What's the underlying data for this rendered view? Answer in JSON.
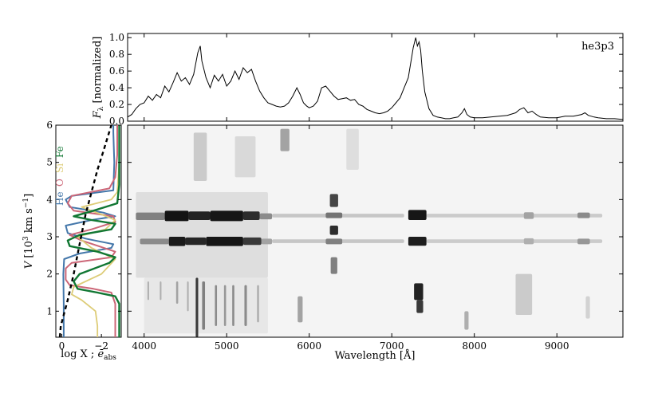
{
  "chart_data": [
    {
      "id": "top",
      "type": "line",
      "legend_text": "he3p3",
      "ylabel": "F_λ [normalized]",
      "ylabel_main": "F",
      "ylabel_sub": "λ",
      "ylabel_rest": " [normalized]",
      "xlim": [
        3800,
        9800
      ],
      "ylim": [
        0,
        1.05
      ],
      "yticks": [
        0.0,
        0.2,
        0.4,
        0.6,
        0.8,
        1.0
      ],
      "ytick_labels": [
        "0.0",
        "0.2",
        "0.4",
        "0.6",
        "0.8",
        "1.0"
      ],
      "x": [
        3800,
        3850,
        3900,
        3950,
        4000,
        4050,
        4100,
        4150,
        4200,
        4250,
        4300,
        4350,
        4400,
        4450,
        4500,
        4550,
        4600,
        4650,
        4680,
        4700,
        4750,
        4800,
        4850,
        4900,
        4950,
        5000,
        5050,
        5100,
        5150,
        5200,
        5250,
        5300,
        5350,
        5400,
        5450,
        5500,
        5550,
        5600,
        5650,
        5700,
        5750,
        5800,
        5850,
        5890,
        5930,
        5970,
        6000,
        6050,
        6100,
        6150,
        6200,
        6250,
        6300,
        6350,
        6400,
        6450,
        6500,
        6550,
        6600,
        6650,
        6700,
        6750,
        6800,
        6850,
        6900,
        6950,
        7000,
        7050,
        7100,
        7150,
        7200,
        7230,
        7260,
        7290,
        7310,
        7330,
        7350,
        7370,
        7400,
        7450,
        7500,
        7550,
        7600,
        7650,
        7700,
        7750,
        7800,
        7850,
        7880,
        7910,
        7950,
        8000,
        8100,
        8200,
        8300,
        8400,
        8500,
        8550,
        8600,
        8650,
        8700,
        8750,
        8800,
        8900,
        9000,
        9100,
        9200,
        9300,
        9340,
        9380,
        9450,
        9500,
        9600,
        9700,
        9800
      ],
      "y": [
        0.05,
        0.08,
        0.15,
        0.2,
        0.22,
        0.3,
        0.25,
        0.32,
        0.28,
        0.42,
        0.35,
        0.46,
        0.58,
        0.48,
        0.52,
        0.44,
        0.56,
        0.82,
        0.9,
        0.72,
        0.52,
        0.4,
        0.55,
        0.48,
        0.56,
        0.42,
        0.48,
        0.6,
        0.5,
        0.64,
        0.58,
        0.62,
        0.48,
        0.36,
        0.28,
        0.22,
        0.2,
        0.18,
        0.17,
        0.18,
        0.22,
        0.3,
        0.4,
        0.32,
        0.22,
        0.18,
        0.16,
        0.18,
        0.24,
        0.4,
        0.42,
        0.36,
        0.3,
        0.26,
        0.27,
        0.28,
        0.25,
        0.26,
        0.2,
        0.18,
        0.14,
        0.12,
        0.1,
        0.09,
        0.1,
        0.12,
        0.16,
        0.22,
        0.28,
        0.4,
        0.52,
        0.7,
        0.88,
        1.0,
        0.9,
        0.95,
        0.85,
        0.6,
        0.35,
        0.15,
        0.07,
        0.05,
        0.04,
        0.03,
        0.03,
        0.04,
        0.05,
        0.1,
        0.15,
        0.08,
        0.05,
        0.04,
        0.04,
        0.05,
        0.06,
        0.07,
        0.1,
        0.14,
        0.16,
        0.1,
        0.12,
        0.08,
        0.05,
        0.04,
        0.04,
        0.06,
        0.06,
        0.08,
        0.1,
        0.07,
        0.05,
        0.04,
        0.03,
        0.03,
        0.02
      ]
    },
    {
      "id": "left",
      "type": "line",
      "xlabel": "log X ; ē_abs",
      "xlabel_main": "log X ; ",
      "xlabel_e": "ē",
      "xlabel_sub": "abs",
      "ylabel": "V [10³ km s⁻¹]",
      "ylabel_parts": [
        "V",
        " [10",
        "3",
        " km s",
        "−1",
        "]"
      ],
      "xlim": [
        0.3,
        -3.0
      ],
      "ylim": [
        0.3,
        6.0
      ],
      "xticks": [
        0,
        -2
      ],
      "xtick_labels": [
        "0",
        "−2"
      ],
      "yticks": [
        1,
        2,
        3,
        4,
        5,
        6
      ],
      "ytick_labels": [
        "1",
        "2",
        "3",
        "4",
        "5",
        "6"
      ],
      "species_labels": [
        "He",
        "O",
        "Si",
        "Fe"
      ],
      "series": [
        {
          "name": "He",
          "color": "#4477aa",
          "x": [
            -0.1,
            -0.1,
            -0.08,
            -0.12,
            -0.9,
            -2.5,
            -2.6,
            -1.2,
            -0.3,
            -0.2,
            -1.5,
            -2.7,
            -2.1,
            -0.4,
            -0.2,
            -0.5,
            -2.6,
            -2.65,
            -2.6,
            -2.6
          ],
          "y": [
            0.3,
            1.2,
            2.0,
            2.4,
            2.55,
            2.7,
            2.8,
            2.95,
            3.1,
            3.3,
            3.45,
            3.55,
            3.65,
            3.8,
            4.0,
            4.1,
            4.25,
            5.0,
            5.8,
            6.0
          ]
        },
        {
          "name": "O",
          "color": "#cc6677",
          "x": [
            -2.7,
            -2.7,
            -2.5,
            -1.6,
            -0.4,
            -0.2,
            -0.2,
            -0.5,
            -2.5,
            -2.7,
            -1.0,
            -0.4,
            -1.5,
            -2.7,
            -2.6,
            -0.6,
            -0.3,
            -0.5,
            -2.4,
            -2.7,
            -2.8,
            -2.8
          ],
          "y": [
            0.3,
            1.2,
            1.5,
            1.6,
            1.7,
            1.85,
            2.15,
            2.3,
            2.45,
            2.6,
            2.9,
            3.05,
            3.2,
            3.4,
            3.55,
            3.7,
            3.9,
            4.1,
            4.3,
            4.6,
            5.2,
            6.0
          ]
        },
        {
          "name": "Si",
          "color": "#ddcc77",
          "x": [
            -1.8,
            -1.8,
            -1.7,
            -1.0,
            -0.5,
            -0.6,
            -2.0,
            -2.7,
            -1.5,
            -0.8,
            -2.2,
            -2.7,
            -2.0,
            -1.0,
            -2.5,
            -2.8,
            -2.9,
            -2.9
          ],
          "y": [
            0.3,
            0.6,
            1.0,
            1.3,
            1.45,
            1.65,
            2.0,
            2.4,
            2.7,
            3.0,
            3.2,
            3.45,
            3.6,
            3.8,
            4.0,
            4.2,
            5.0,
            6.0
          ],
          "width": 1.8
        },
        {
          "name": "Fe",
          "color": "#117733",
          "x": [
            -2.9,
            -2.9,
            -2.7,
            -1.8,
            -0.8,
            -0.6,
            -0.9,
            -2.4,
            -2.7,
            -1.8,
            -0.4,
            -0.3,
            -0.9,
            -2.5,
            -2.7,
            -1.5,
            -0.6,
            -1.6,
            -2.8,
            -2.9,
            -2.9
          ],
          "y": [
            0.3,
            1.2,
            1.4,
            1.5,
            1.6,
            1.8,
            2.0,
            2.3,
            2.45,
            2.6,
            2.75,
            2.9,
            3.05,
            3.2,
            3.35,
            3.45,
            3.55,
            3.7,
            3.9,
            4.4,
            6.0
          ],
          "width": 2.4
        },
        {
          "name": "ē_abs",
          "color": "#000000",
          "dashed": true,
          "x": [
            0.1,
            0.05,
            -0.1,
            -0.3,
            -0.6,
            -0.9,
            -1.2,
            -1.5,
            -1.8,
            -2.1,
            -2.3,
            -2.5
          ],
          "y": [
            0.3,
            0.6,
            0.9,
            1.3,
            2.0,
            2.8,
            3.6,
            4.2,
            4.8,
            5.3,
            5.65,
            6.0
          ]
        }
      ]
    },
    {
      "id": "main",
      "type": "heatmap",
      "xlabel": "Wavelength [Å]",
      "xlim": [
        3800,
        9800
      ],
      "ylim": [
        0.3,
        6.0
      ],
      "xticks": [
        4000,
        5000,
        6000,
        7000,
        8000,
        9000
      ],
      "xtick_labels": [
        "4000",
        "5000",
        "6000",
        "7000",
        "8000",
        "9000"
      ],
      "features": [
        {
          "x0": 4250,
          "x1": 4540,
          "y0": 3.42,
          "y1": 3.7,
          "i": 0.96
        },
        {
          "x0": 4540,
          "x1": 4800,
          "y0": 3.45,
          "y1": 3.68,
          "i": 0.9
        },
        {
          "x0": 4800,
          "x1": 5200,
          "y0": 3.42,
          "y1": 3.7,
          "i": 0.95
        },
        {
          "x0": 5200,
          "x1": 5400,
          "y0": 3.45,
          "y1": 3.68,
          "i": 0.85
        },
        {
          "x0": 3900,
          "x1": 4250,
          "y0": 3.45,
          "y1": 3.65,
          "i": 0.5
        },
        {
          "x0": 5400,
          "x1": 5550,
          "y0": 3.47,
          "y1": 3.63,
          "i": 0.45
        },
        {
          "x0": 4300,
          "x1": 4500,
          "y0": 2.75,
          "y1": 3.0,
          "i": 0.93
        },
        {
          "x0": 4500,
          "x1": 4750,
          "y0": 2.78,
          "y1": 2.98,
          "i": 0.88
        },
        {
          "x0": 4750,
          "x1": 5200,
          "y0": 2.75,
          "y1": 3.0,
          "i": 0.95
        },
        {
          "x0": 5200,
          "x1": 5420,
          "y0": 2.78,
          "y1": 2.98,
          "i": 0.8
        },
        {
          "x0": 3950,
          "x1": 4300,
          "y0": 2.8,
          "y1": 2.95,
          "i": 0.45
        },
        {
          "x0": 5420,
          "x1": 5550,
          "y0": 2.8,
          "y1": 2.95,
          "i": 0.35
        },
        {
          "x0": 7200,
          "x1": 7420,
          "y0": 3.45,
          "y1": 3.72,
          "i": 0.95
        },
        {
          "x0": 7200,
          "x1": 7420,
          "y0": 2.76,
          "y1": 3.0,
          "i": 0.92
        },
        {
          "x0": 7270,
          "x1": 7380,
          "y0": 1.3,
          "y1": 1.75,
          "i": 0.9
        },
        {
          "x0": 7300,
          "x1": 7380,
          "y0": 0.95,
          "y1": 1.3,
          "i": 0.8
        },
        {
          "x0": 6250,
          "x1": 6350,
          "y0": 3.8,
          "y1": 4.15,
          "i": 0.75
        },
        {
          "x0": 6250,
          "x1": 6350,
          "y0": 3.05,
          "y1": 3.3,
          "i": 0.85
        },
        {
          "x0": 6260,
          "x1": 6340,
          "y0": 2.0,
          "y1": 2.45,
          "i": 0.5
        },
        {
          "x0": 6200,
          "x1": 6400,
          "y0": 3.5,
          "y1": 3.65,
          "i": 0.55
        },
        {
          "x0": 6200,
          "x1": 6400,
          "y0": 2.8,
          "y1": 2.95,
          "i": 0.5
        },
        {
          "x0": 5550,
          "x1": 7150,
          "y0": 3.52,
          "y1": 3.62,
          "i": 0.2
        },
        {
          "x0": 7420,
          "x1": 9550,
          "y0": 3.52,
          "y1": 3.62,
          "i": 0.18
        },
        {
          "x0": 5550,
          "x1": 7150,
          "y0": 2.83,
          "y1": 2.93,
          "i": 0.2
        },
        {
          "x0": 7420,
          "x1": 9550,
          "y0": 2.83,
          "y1": 2.93,
          "i": 0.18
        },
        {
          "x0": 9250,
          "x1": 9400,
          "y0": 3.5,
          "y1": 3.65,
          "i": 0.45
        },
        {
          "x0": 9250,
          "x1": 9400,
          "y0": 2.8,
          "y1": 2.95,
          "i": 0.4
        },
        {
          "x0": 8600,
          "x1": 8720,
          "y0": 3.48,
          "y1": 3.66,
          "i": 0.35
        },
        {
          "x0": 8600,
          "x1": 8720,
          "y0": 2.8,
          "y1": 2.96,
          "i": 0.3
        },
        {
          "x0": 7880,
          "x1": 7930,
          "y0": 0.5,
          "y1": 1.0,
          "i": 0.3
        },
        {
          "x0": 5860,
          "x1": 5920,
          "y0": 0.7,
          "y1": 1.4,
          "i": 0.35
        },
        {
          "x0": 5650,
          "x1": 5760,
          "y0": 5.3,
          "y1": 5.9,
          "i": 0.35
        },
        {
          "x0": 4600,
          "x1": 4760,
          "y0": 4.5,
          "y1": 5.8,
          "i": 0.18
        },
        {
          "x0": 5100,
          "x1": 5350,
          "y0": 4.6,
          "y1": 5.7,
          "i": 0.12
        },
        {
          "x0": 6450,
          "x1": 6600,
          "y0": 4.8,
          "y1": 5.9,
          "i": 0.1
        },
        {
          "x0": 8500,
          "x1": 8700,
          "y0": 0.9,
          "y1": 2.0,
          "i": 0.18
        },
        {
          "x0": 9350,
          "x1": 9400,
          "y0": 0.8,
          "y1": 1.4,
          "i": 0.15
        },
        {
          "x0": 3900,
          "x1": 5500,
          "y0": 1.9,
          "y1": 4.2,
          "i": 0.1
        },
        {
          "x0": 4000,
          "x1": 5500,
          "y0": 0.4,
          "y1": 1.9,
          "i": 0.06
        }
      ],
      "streaks": [
        {
          "x": 4640,
          "y0": 0.3,
          "y1": 1.9,
          "i": 0.8,
          "w": 30
        },
        {
          "x": 4720,
          "y0": 0.5,
          "y1": 1.8,
          "i": 0.5,
          "w": 35
        },
        {
          "x": 4870,
          "y0": 0.6,
          "y1": 1.7,
          "i": 0.45,
          "w": 25
        },
        {
          "x": 4980,
          "y0": 0.6,
          "y1": 1.7,
          "i": 0.4,
          "w": 25
        },
        {
          "x": 5080,
          "y0": 0.6,
          "y1": 1.7,
          "i": 0.45,
          "w": 25
        },
        {
          "x": 5230,
          "y0": 0.6,
          "y1": 1.7,
          "i": 0.45,
          "w": 30
        },
        {
          "x": 5380,
          "y0": 0.7,
          "y1": 1.7,
          "i": 0.3,
          "w": 25
        },
        {
          "x": 4400,
          "y0": 1.2,
          "y1": 1.8,
          "i": 0.35,
          "w": 25
        },
        {
          "x": 4200,
          "y0": 1.3,
          "y1": 1.8,
          "i": 0.3,
          "w": 20
        },
        {
          "x": 4050,
          "y0": 1.3,
          "y1": 1.8,
          "i": 0.3,
          "w": 20
        },
        {
          "x": 4530,
          "y0": 1.0,
          "y1": 1.8,
          "i": 0.3,
          "w": 20
        }
      ]
    }
  ]
}
